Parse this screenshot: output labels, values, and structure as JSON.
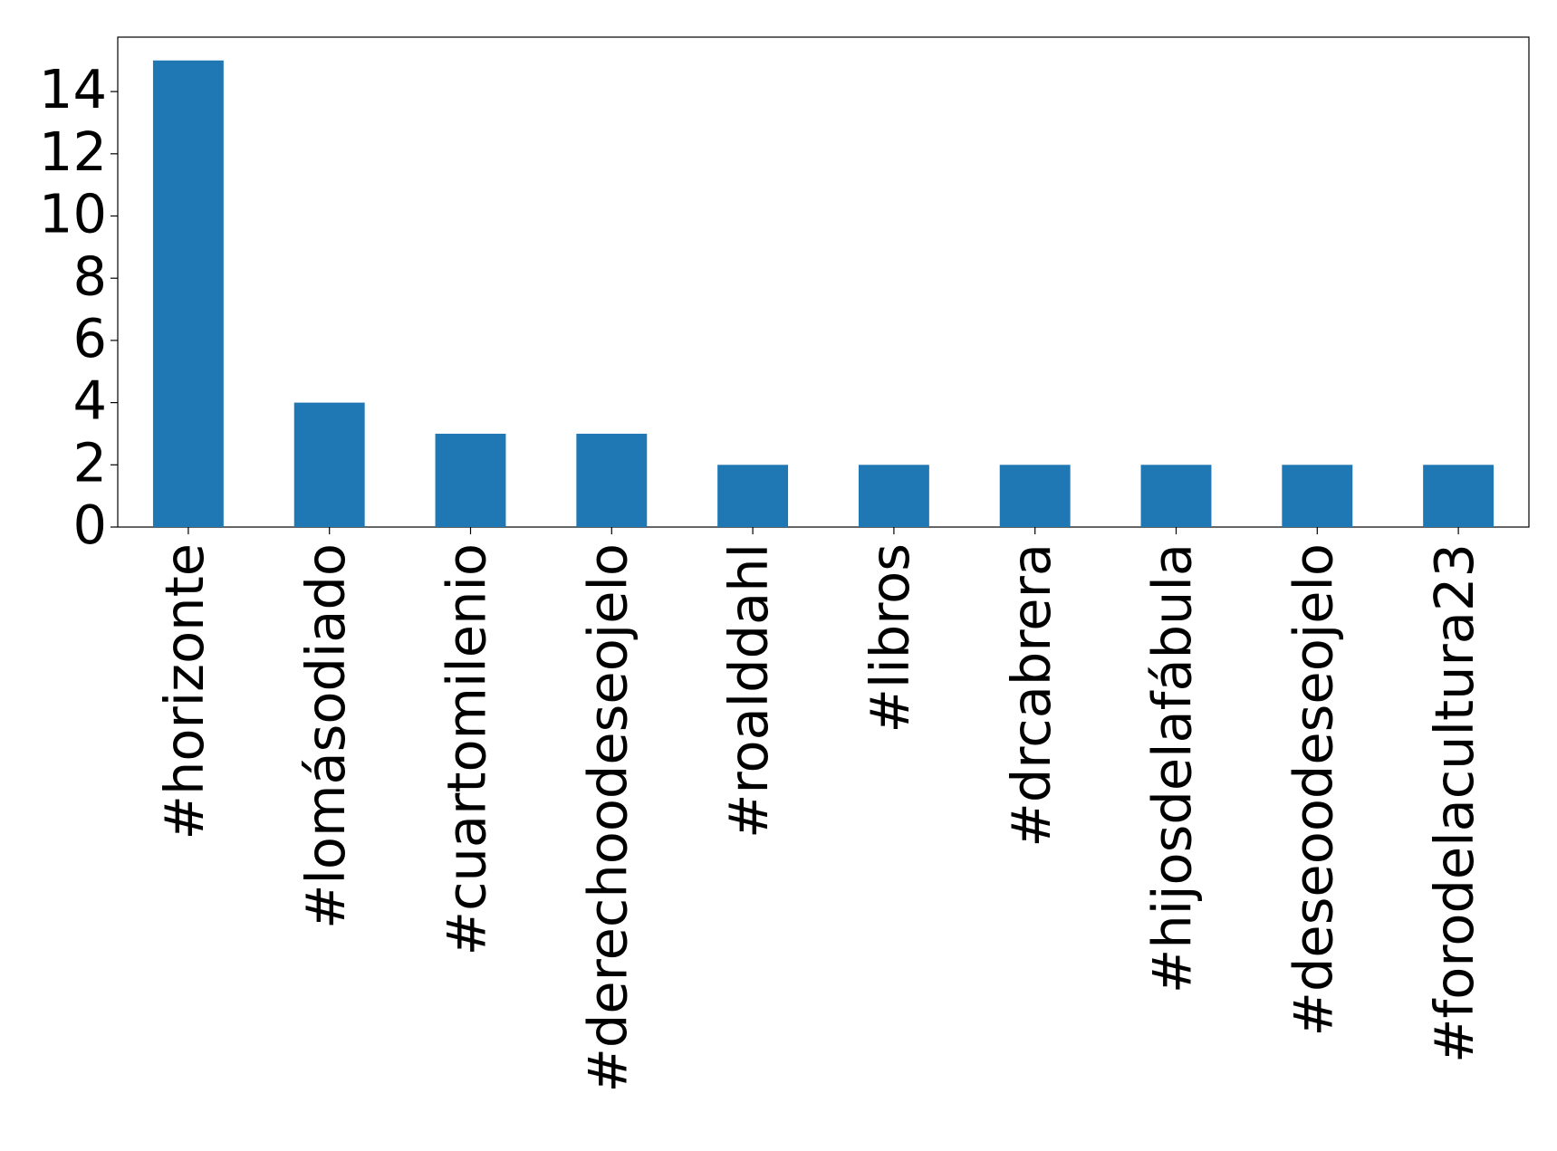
{
  "chart_data": {
    "type": "bar",
    "categories": [
      "#horizonte",
      "#lomásodiado",
      "#cuartomilenio",
      "#derechoodeseojelo",
      "#roalddahl",
      "#libros",
      "#drcabrera",
      "#hijosdelafábula",
      "#deseoodeseojelo",
      "#forodelacultura23"
    ],
    "values": [
      15,
      4,
      3,
      3,
      2,
      2,
      2,
      2,
      2,
      2
    ],
    "color": "#1f77b4",
    "ylim": [
      0,
      15.75
    ],
    "yticks": [
      0,
      2,
      4,
      6,
      8,
      10,
      12,
      14
    ],
    "grid": false
  }
}
